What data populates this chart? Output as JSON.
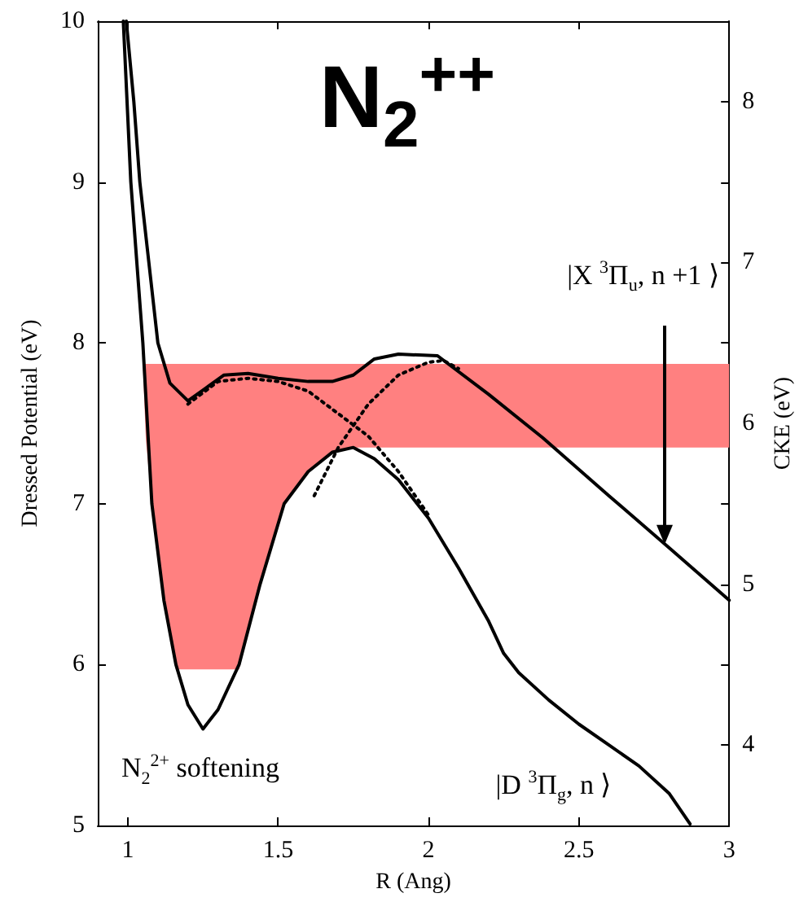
{
  "chart_data": {
    "type": "line",
    "title": "N$_{2}$$^{++}$",
    "xlabel": "R (Ang)",
    "ylabel": "Dressed Potential (eV)",
    "y2label": "CKE (eV)",
    "xlim": [
      0.9,
      3
    ],
    "xticks": [
      1,
      1.5,
      2,
      2.5,
      3
    ],
    "ylim": [
      5,
      10
    ],
    "yticks": [
      5,
      6,
      7,
      8,
      9,
      10
    ],
    "y2lim": [
      3.5,
      8.5
    ],
    "y2ticks": [
      4,
      {
        "value": 4.5,
        "label": null
      },
      5,
      {
        "value": 5.5,
        "label": null
      },
      6,
      {
        "value": 6.5,
        "label": null
      },
      7,
      {
        "value": 7.5,
        "label": null
      },
      8
    ],
    "grid": false,
    "marker": "none",
    "series": [
      {
        "type": "area",
        "color": "#ff8080",
        "x": [
          1.05,
          1.06,
          1.08,
          1.12,
          1.16,
          1.37,
          1.44,
          1.52,
          1.6,
          1.68,
          1.75,
          3.0,
          3.0
        ],
        "values": [
          7.87,
          7.4,
          7.0,
          6.4,
          5.97,
          5.97,
          6.5,
          7.0,
          7.2,
          7.32,
          7.35,
          7.35,
          7.87
        ]
      },
      {
        "color": "#000000",
        "line_style": "dotted",
        "x": [
          1.2,
          1.3,
          1.4,
          1.5,
          1.6,
          1.7,
          1.8,
          1.9,
          2.0
        ],
        "values": [
          7.62,
          7.76,
          7.78,
          7.76,
          7.7,
          7.56,
          7.42,
          7.2,
          6.93
        ]
      },
      {
        "color": "#000000",
        "line_style": "dotted",
        "x": [
          1.62,
          1.7,
          1.8,
          1.9,
          2.0,
          2.05,
          2.1
        ],
        "values": [
          7.05,
          7.35,
          7.62,
          7.8,
          7.88,
          7.89,
          7.84
        ]
      },
      {
        "color": "#000000",
        "line_style": "solid",
        "x": [
          0.985,
          1.01,
          1.05,
          1.08,
          1.12,
          1.16,
          1.2,
          1.25,
          1.3,
          1.37,
          1.44,
          1.52,
          1.6,
          1.68,
          1.75,
          1.82,
          1.9,
          2.0,
          2.1,
          2.2,
          2.25,
          2.3,
          2.4,
          2.5,
          2.6,
          2.7,
          2.8,
          2.87
        ],
        "values": [
          10,
          9,
          8,
          7,
          6.4,
          6.0,
          5.75,
          5.6,
          5.72,
          6.0,
          6.5,
          7.0,
          7.2,
          7.32,
          7.35,
          7.28,
          7.15,
          6.91,
          6.6,
          6.27,
          6.07,
          5.95,
          5.78,
          5.63,
          5.5,
          5.37,
          5.2,
          5.01
        ]
      },
      {
        "color": "#000000",
        "line_style": "solid",
        "x": [
          0.995,
          1.02,
          1.04,
          1.07,
          1.1,
          1.14,
          1.2,
          1.26,
          1.32,
          1.4,
          1.5,
          1.6,
          1.68,
          1.75,
          1.82,
          1.9,
          2.03,
          2.2,
          2.38,
          2.6,
          2.81,
          3.0
        ],
        "values": [
          10,
          9.5,
          9,
          8.5,
          8.0,
          7.75,
          7.64,
          7.72,
          7.8,
          7.81,
          7.78,
          7.76,
          7.76,
          7.8,
          7.9,
          7.93,
          7.92,
          7.68,
          7.41,
          7.05,
          6.71,
          6.4
        ]
      }
    ],
    "annotations": [
      "|X $^{3}$Π$_{u}$, n +1 ⟩",
      "|D $^{3}$Π$_{g}$, n ⟩",
      "N$_{2}$$^{2+}$ softening"
    ]
  }
}
